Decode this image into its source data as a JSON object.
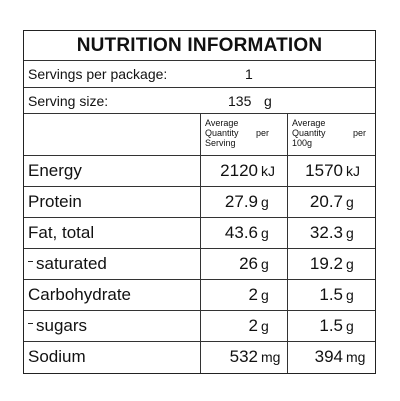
{
  "title": "NUTRITION INFORMATION",
  "servings": {
    "label": "Servings per package:",
    "value": "1"
  },
  "serving_size": {
    "label": "Serving size:",
    "value": "135",
    "unit": "g"
  },
  "column_headers": {
    "per_serving": [
      "Average",
      [
        "Quantity",
        "per"
      ],
      "Serving"
    ],
    "per_100g": [
      "Average",
      [
        "Quantity",
        "per"
      ],
      "100g"
    ]
  },
  "rows": [
    {
      "label": "Energy",
      "serving": "2120",
      "serving_unit": "kJ",
      "per100": "1570",
      "per100_unit": "kJ",
      "sub": false
    },
    {
      "label": "Protein",
      "serving": "27.9",
      "serving_unit": "g",
      "per100": "20.7",
      "per100_unit": "g",
      "sub": false
    },
    {
      "label": "Fat, total",
      "serving": "43.6",
      "serving_unit": "g",
      "per100": "32.3",
      "per100_unit": "g",
      "sub": false
    },
    {
      "label": "saturated",
      "serving": "26",
      "serving_unit": "g",
      "per100": "19.2",
      "per100_unit": "g",
      "sub": true
    },
    {
      "label": "Carbohydrate",
      "serving": "2",
      "serving_unit": "g",
      "per100": "1.5",
      "per100_unit": "g",
      "sub": false
    },
    {
      "label": "sugars",
      "serving": "2",
      "serving_unit": "g",
      "per100": "1.5",
      "per100_unit": "g",
      "sub": true
    },
    {
      "label": "Sodium",
      "serving": "532",
      "serving_unit": "mg",
      "per100": "394",
      "per100_unit": "mg",
      "sub": false
    }
  ]
}
